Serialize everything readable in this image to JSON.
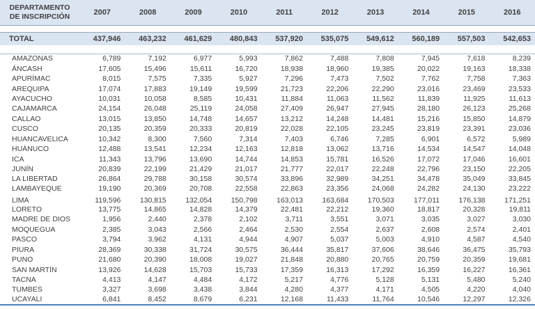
{
  "table": {
    "department_header": "DEPARTAMENTO DE INSCRIPCIÓN",
    "years": [
      "2007",
      "2008",
      "2009",
      "2010",
      "2011",
      "2012",
      "2013",
      "2014",
      "2015",
      "2016"
    ],
    "total": {
      "label": "TOTAL",
      "values": [
        "437,946",
        "463,232",
        "461,629",
        "480,843",
        "537,920",
        "535,075",
        "549,612",
        "560,189",
        "557,503",
        "542,653"
      ]
    },
    "rows": [
      {
        "department": "AMAZONAS",
        "values": [
          "6,789",
          "7,192",
          "6,977",
          "5,993",
          "7,862",
          "7,488",
          "7,808",
          "7,945",
          "7,618",
          "8,239"
        ]
      },
      {
        "department": "ÁNCASH",
        "values": [
          "17,605",
          "15,496",
          "15,611",
          "16,720",
          "18,938",
          "18,960",
          "19,385",
          "20,022",
          "19,163",
          "18,338"
        ]
      },
      {
        "department": "APURÍMAC",
        "values": [
          "8,015",
          "7,575",
          "7,335",
          "5,927",
          "7,296",
          "7,473",
          "7,502",
          "7,762",
          "7,758",
          "7,363"
        ]
      },
      {
        "department": "AREQUIPA",
        "values": [
          "17,074",
          "17,883",
          "19,149",
          "19,599",
          "21,723",
          "22,206",
          "22,290",
          "23,016",
          "23,469",
          "23,533"
        ]
      },
      {
        "department": "AYACUCHO",
        "values": [
          "10,031",
          "10,058",
          "8,585",
          "10,431",
          "11,884",
          "11,063",
          "11,562",
          "11,839",
          "11,925",
          "11,613"
        ]
      },
      {
        "department": "CAJAMARCA",
        "values": [
          "24,154",
          "26,048",
          "25,119",
          "24,058",
          "27,409",
          "26,947",
          "27,945",
          "28,180",
          "26,123",
          "25,268"
        ]
      },
      {
        "department": "CALLAO",
        "values": [
          "13,015",
          "13,850",
          "14,748",
          "14,657",
          "13,212",
          "14,248",
          "14,481",
          "15,216",
          "15,850",
          "14,879"
        ]
      },
      {
        "department": "CUSCO",
        "values": [
          "20,135",
          "20,359",
          "20,333",
          "20,819",
          "22,028",
          "22,105",
          "23,245",
          "23,819",
          "23,391",
          "23,036"
        ]
      },
      {
        "department": "HUANCAVELICA",
        "values": [
          "10,342",
          "8,300",
          "7,560",
          "7,314",
          "7,403",
          "6,746",
          "7,285",
          "6,901",
          "6,572",
          "5,989"
        ]
      },
      {
        "department": "HUÁNUCO",
        "values": [
          "12,488",
          "13,541",
          "12,234",
          "12,163",
          "12,818",
          "13,062",
          "13,716",
          "14,534",
          "14,547",
          "14,048"
        ]
      },
      {
        "department": "ICA",
        "values": [
          "11,343",
          "13,796",
          "13,690",
          "14,744",
          "14,853",
          "15,781",
          "16,526",
          "17,072",
          "17,046",
          "16,601"
        ]
      },
      {
        "department": "JUNÍN",
        "values": [
          "20,839",
          "22,199",
          "21,429",
          "21,017",
          "21,777",
          "22,017",
          "22,248",
          "22,796",
          "23,150",
          "22,205"
        ]
      },
      {
        "department": "LA LIBERTAD",
        "values": [
          "26,864",
          "29,788",
          "30,158",
          "30,574",
          "33,896",
          "32,989",
          "34,251",
          "34,478",
          "35,049",
          "33,845"
        ]
      },
      {
        "department": "LAMBAYEQUE",
        "values": [
          "19,190",
          "20,369",
          "20,708",
          "22,558",
          "22,863",
          "23,356",
          "24,068",
          "24,282",
          "24,130",
          "23,222"
        ]
      },
      {
        "department": "LIMA",
        "group_start": true,
        "values": [
          "119,596",
          "130,815",
          "132,054",
          "150,798",
          "163,013",
          "163,684",
          "170,503",
          "177,011",
          "176,138",
          "171,251"
        ]
      },
      {
        "department": "LORETO",
        "values": [
          "13,775",
          "14,865",
          "14,828",
          "14,379",
          "22,481",
          "22,212",
          "19,360",
          "18,817",
          "20,328",
          "19,811"
        ]
      },
      {
        "department": "MADRE DE DIOS",
        "values": [
          "1,956",
          "2,440",
          "2,378",
          "2,102",
          "3,711",
          "3,551",
          "3,071",
          "3,035",
          "3,027",
          "3,030"
        ]
      },
      {
        "department": "MOQUEGUA",
        "values": [
          "2,385",
          "3,043",
          "2,566",
          "2,464",
          "2,530",
          "2,554",
          "2,637",
          "2,608",
          "2,574",
          "2,401"
        ]
      },
      {
        "department": "PASCO",
        "values": [
          "3,794",
          "3,962",
          "4,131",
          "4,944",
          "4,907",
          "5,037",
          "5,003",
          "4,910",
          "4,587",
          "4,540"
        ]
      },
      {
        "department": "PIURA",
        "values": [
          "28,369",
          "30,338",
          "31,724",
          "30,575",
          "36,444",
          "35,817",
          "37,606",
          "38,646",
          "36,475",
          "35,793"
        ]
      },
      {
        "department": "PUNO",
        "values": [
          "21,680",
          "20,390",
          "18,008",
          "19,027",
          "21,848",
          "20,880",
          "20,765",
          "20,759",
          "20,359",
          "19,681"
        ]
      },
      {
        "department": "SAN MARTÍN",
        "values": [
          "13,926",
          "14,628",
          "15,703",
          "15,733",
          "17,359",
          "16,313",
          "17,292",
          "16,359",
          "16,227",
          "16,361"
        ]
      },
      {
        "department": "TACNA",
        "values": [
          "4,413",
          "4,147",
          "4,484",
          "4,172",
          "5,217",
          "4,776",
          "5,128",
          "5,131",
          "5,480",
          "5,240"
        ]
      },
      {
        "department": "TUMBES",
        "values": [
          "3,327",
          "3,698",
          "3,438",
          "3,844",
          "4,280",
          "4,377",
          "4,171",
          "4,505",
          "4,220",
          "4,040"
        ]
      },
      {
        "department": "UCAYALI",
        "values": [
          "6,841",
          "8,452",
          "8,679",
          "6,231",
          "12,168",
          "11,433",
          "11,764",
          "10,546",
          "12,297",
          "12,326"
        ]
      }
    ],
    "colors": {
      "header_bg": "#dbe5f1",
      "separator": "#94a5bb",
      "separator_light": "#a9bdd4",
      "accent_line": "#4f81bd",
      "text": "#404040"
    }
  }
}
